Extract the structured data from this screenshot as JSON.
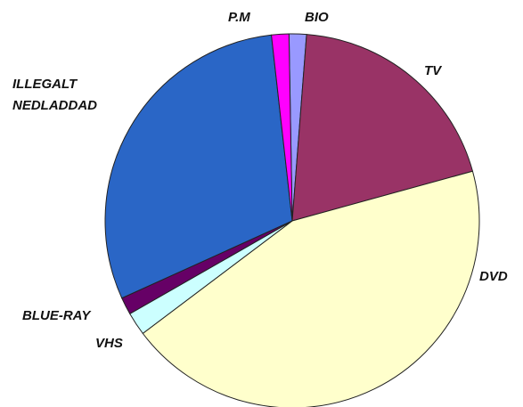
{
  "chart_data": {
    "type": "pie",
    "categories": [
      "BIO",
      "TV",
      "DVD",
      "VHS",
      "BLUE-RAY",
      "ILLEGALT NEDLADDAD",
      "P.M"
    ],
    "values": [
      1.5,
      19.5,
      44,
      2,
      1.5,
      30,
      1.5
    ],
    "colors": [
      "#9999ff",
      "#993366",
      "#ffffcc",
      "#ccffff",
      "#660066",
      "#2a66c6",
      "#ff00ff"
    ]
  }
}
